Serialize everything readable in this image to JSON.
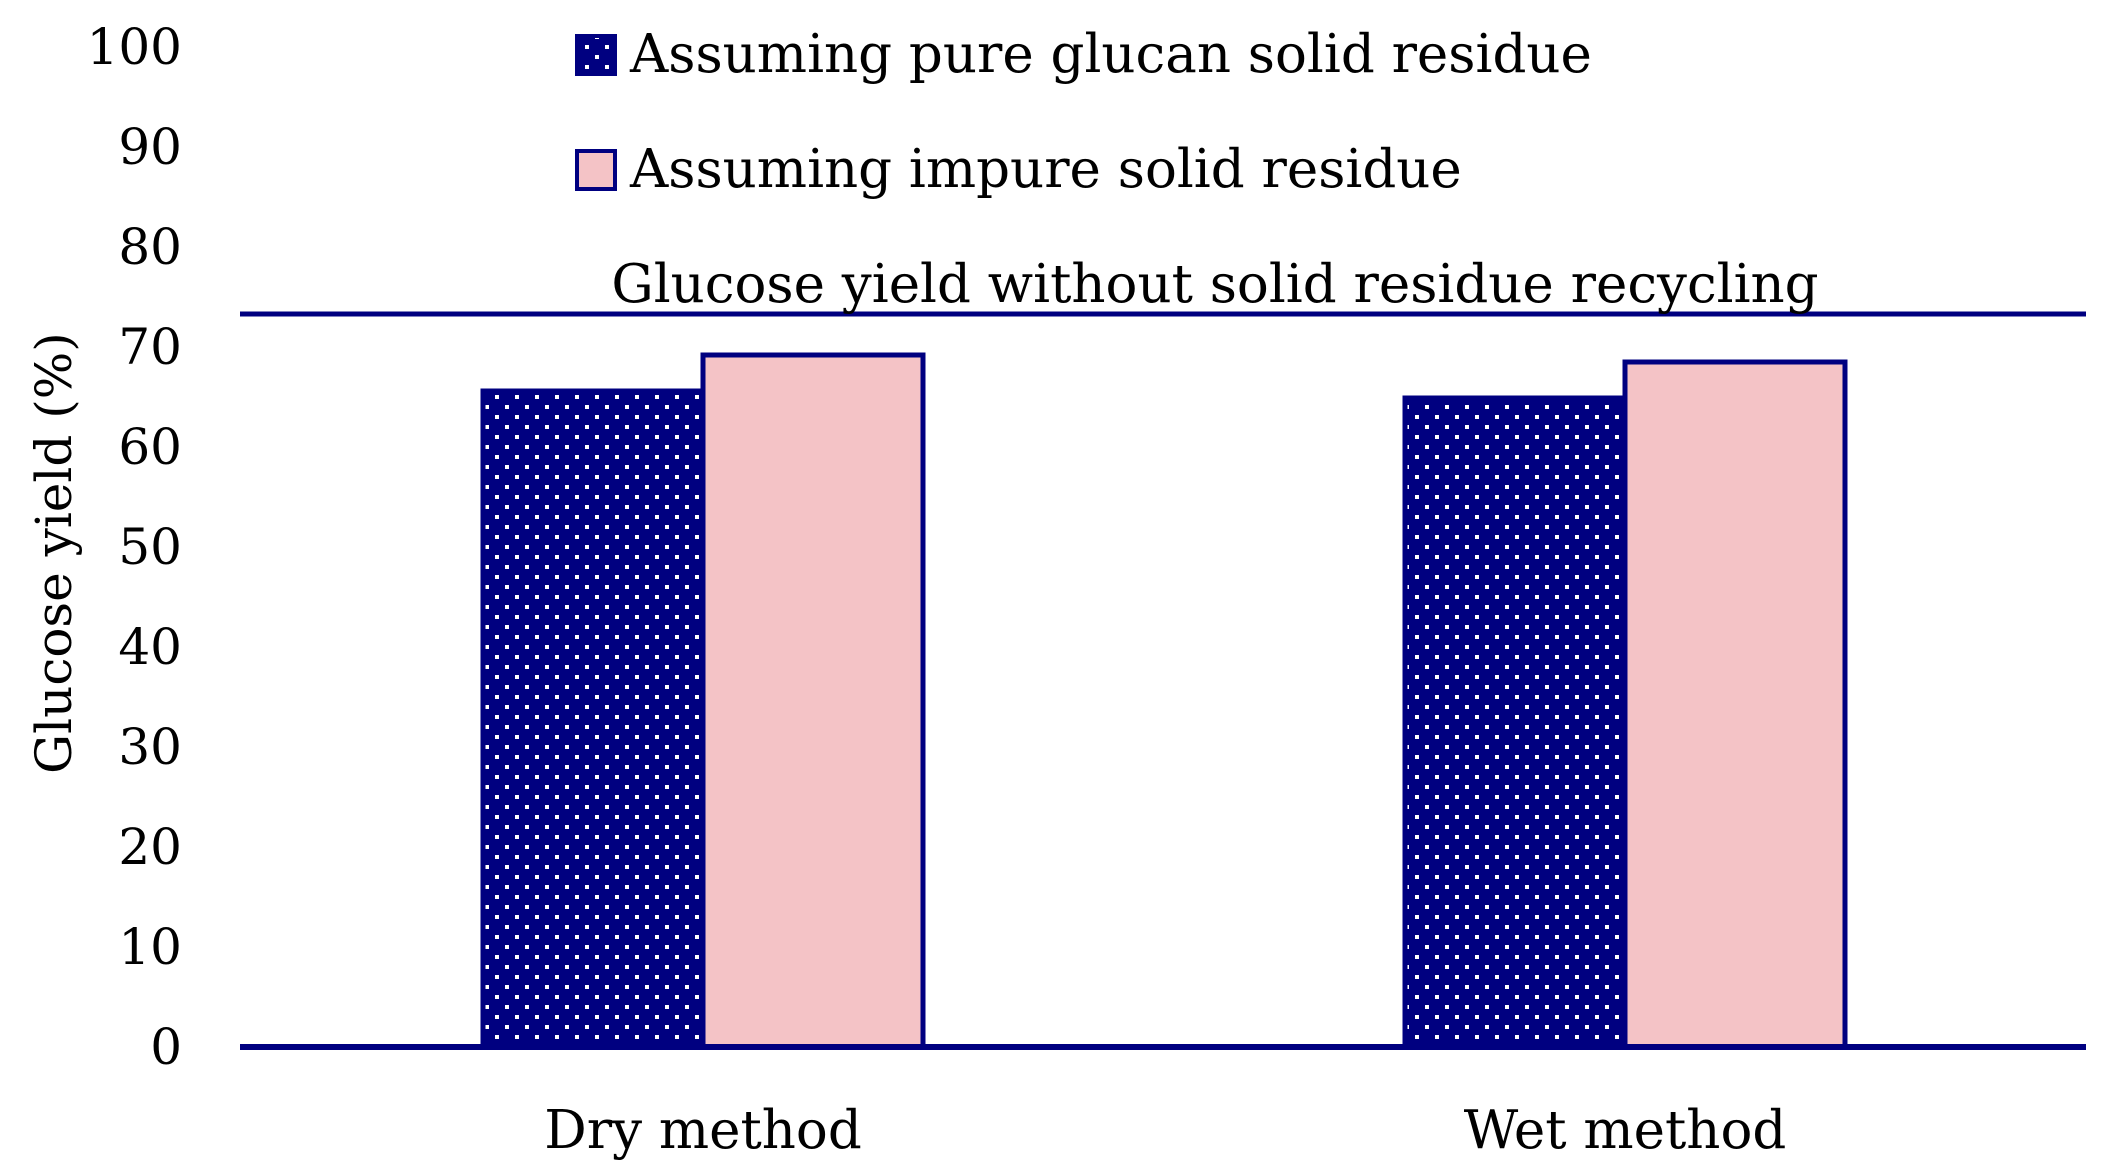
{
  "chart_data": {
    "type": "bar",
    "title": "",
    "xlabel": "",
    "ylabel": "Glucose yield (%)",
    "ylim": [
      0,
      100
    ],
    "yticks": [
      0,
      10,
      20,
      30,
      40,
      50,
      60,
      70,
      80,
      90,
      100
    ],
    "categories": [
      "Dry method",
      "Wet method"
    ],
    "series": [
      {
        "name": "Assuming pure glucan solid residue",
        "values": [
          65.6,
          64.9
        ],
        "color": "#000080",
        "pattern": "white-dots"
      },
      {
        "name": "Assuming impure solid residue",
        "values": [
          69.2,
          68.5
        ],
        "color": "#F4C3C6",
        "pattern": "solid"
      }
    ],
    "reference_line": {
      "label": "Glucose yield without solid residue recycling",
      "value": 73.3,
      "color": "#000080"
    },
    "legend_position": "top-center",
    "grid": false,
    "colors": {
      "axis": "#000080",
      "bar_outline": "#000080"
    }
  }
}
